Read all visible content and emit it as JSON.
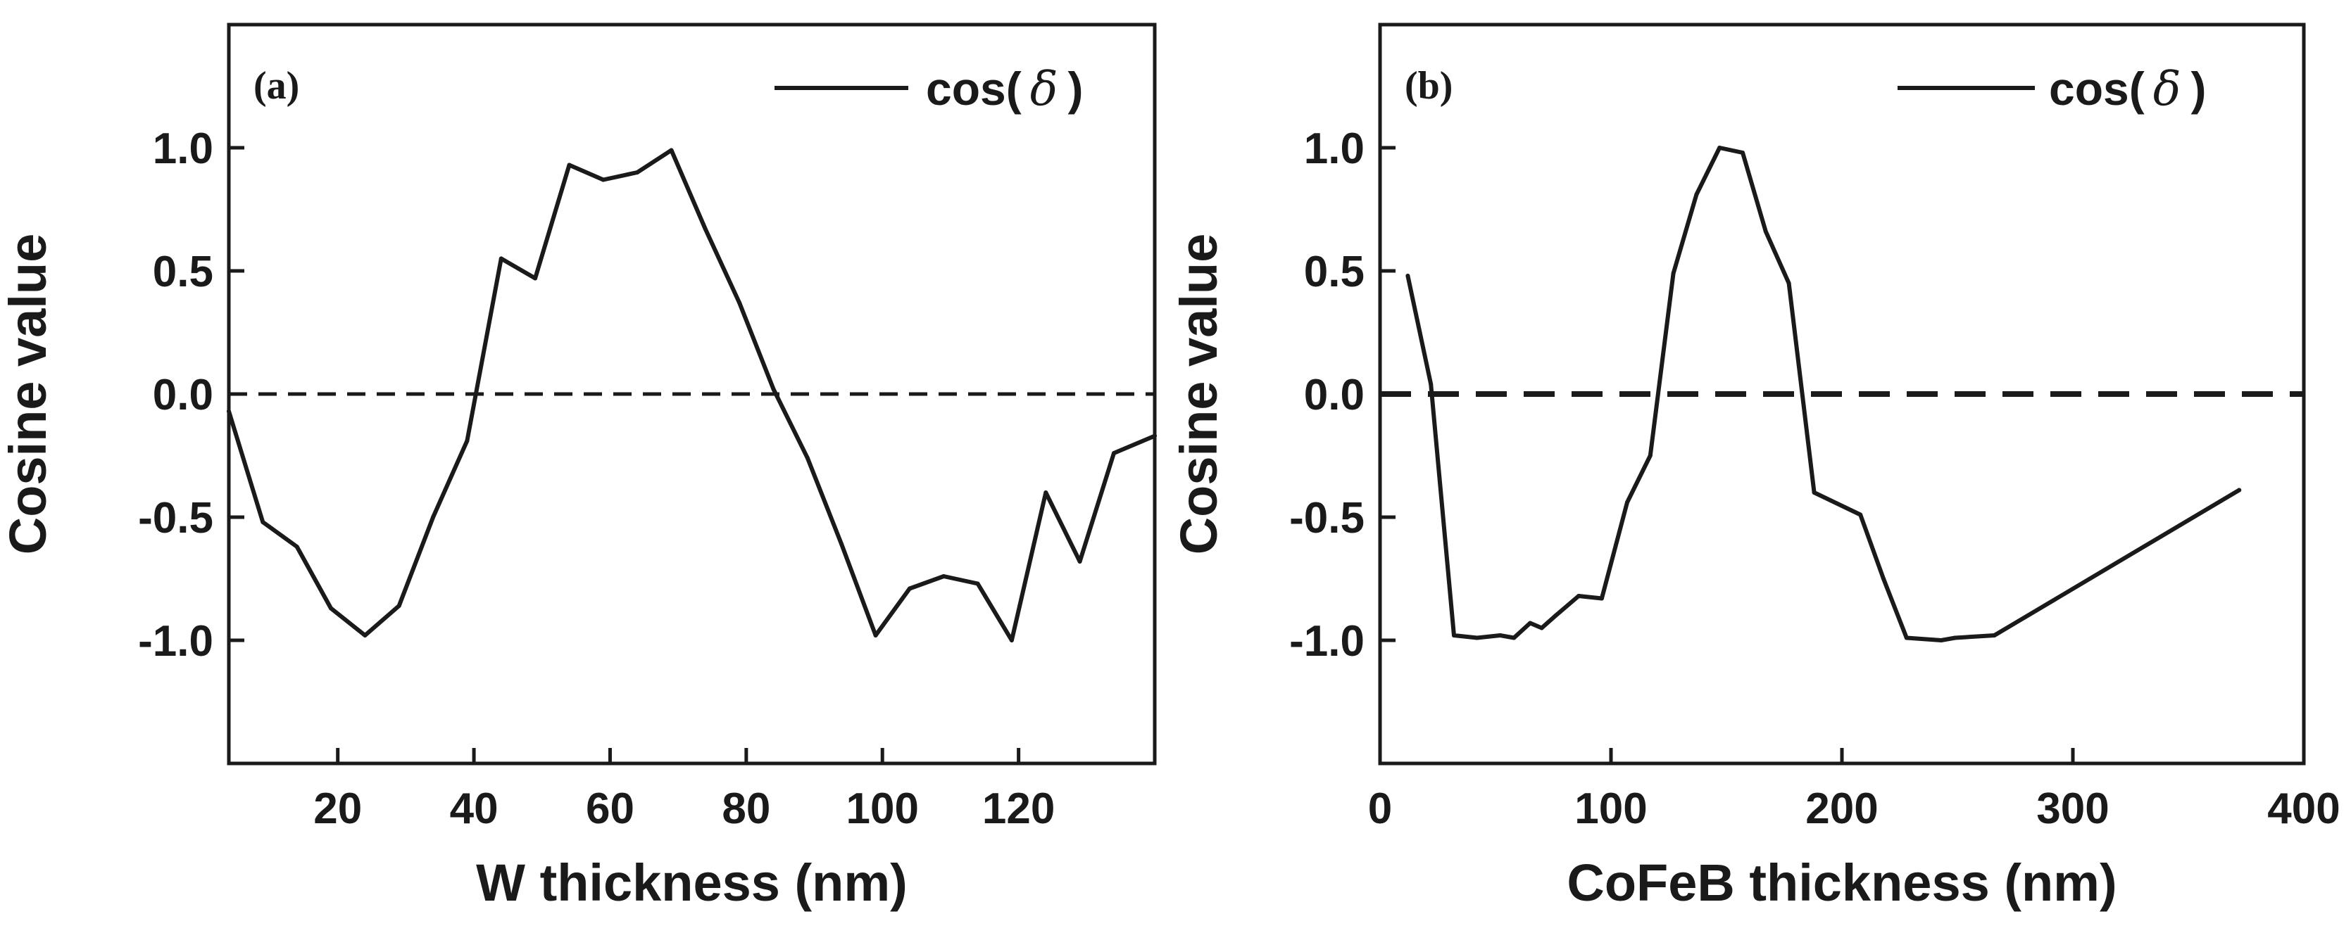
{
  "chart_data": [
    {
      "type": "line",
      "panel_label": "(a)",
      "xlabel": "W thickness (nm)",
      "ylabel": "Cosine value",
      "xlim": [
        4,
        140
      ],
      "ylim": [
        -1.5,
        1.5
      ],
      "xticks": [
        20,
        40,
        60,
        80,
        100,
        120
      ],
      "xtick_labels": [
        "20",
        "40",
        "60",
        "80",
        "100",
        "120"
      ],
      "yticks": [
        -1.0,
        -0.5,
        0.0,
        0.5,
        1.0
      ],
      "ytick_labels": [
        "-1.0",
        "-0.5",
        "0.0",
        "0.5",
        "1.0"
      ],
      "legend": {
        "label_prefix": "cos(",
        "symbol": "δ",
        "label_suffix": ")",
        "position": "top-right"
      },
      "reference_line": {
        "y": 0,
        "style": "dashed"
      },
      "series": [
        {
          "name": "cos(δ)",
          "x": [
            4,
            9,
            14,
            19,
            24,
            29,
            34,
            39,
            44,
            49,
            54,
            59,
            64,
            69,
            74,
            79,
            84,
            89,
            94,
            99,
            104,
            109,
            114,
            119,
            124,
            129,
            134,
            140
          ],
          "y": [
            -0.07,
            -0.52,
            -0.62,
            -0.87,
            -0.98,
            -0.86,
            -0.5,
            -0.19,
            0.55,
            0.47,
            0.93,
            0.87,
            0.9,
            0.99,
            0.67,
            0.37,
            0.02,
            -0.26,
            -0.61,
            -0.98,
            -0.79,
            -0.74,
            -0.77,
            -1.0,
            -0.4,
            -0.68,
            -0.24,
            -0.17
          ]
        }
      ]
    },
    {
      "type": "line",
      "panel_label": "(b)",
      "xlabel": "CoFeB thickness (nm)",
      "ylabel": "Cosine value",
      "xlim": [
        0,
        400
      ],
      "ylim": [
        -1.5,
        1.5
      ],
      "xticks": [
        0,
        100,
        200,
        300,
        400
      ],
      "xtick_labels": [
        "0",
        "100",
        "200",
        "300",
        "400"
      ],
      "yticks": [
        -1.0,
        -0.5,
        0.0,
        0.5,
        1.0
      ],
      "ytick_labels": [
        "-1.0",
        "-0.5",
        "0.0",
        "0.5",
        "1.0"
      ],
      "legend": {
        "label_prefix": "cos(",
        "symbol": "δ",
        "label_suffix": ")",
        "position": "top-right"
      },
      "reference_line": {
        "y": 0,
        "style": "dashed"
      },
      "series": [
        {
          "name": "cos(δ)",
          "x": [
            12,
            22,
            32,
            42,
            52,
            58,
            65,
            70,
            76,
            86,
            96,
            107,
            117,
            127,
            137,
            147,
            157,
            167,
            177,
            188,
            208,
            218,
            228,
            243,
            249,
            266,
            372
          ],
          "y": [
            0.48,
            0.04,
            -0.98,
            -0.99,
            -0.98,
            -0.99,
            -0.93,
            -0.95,
            -0.9,
            -0.82,
            -0.83,
            -0.44,
            -0.25,
            0.49,
            0.81,
            1.0,
            0.98,
            0.66,
            0.45,
            -0.4,
            -0.49,
            -0.75,
            -0.99,
            -1.0,
            -0.99,
            -0.98,
            -0.39
          ]
        }
      ]
    }
  ]
}
